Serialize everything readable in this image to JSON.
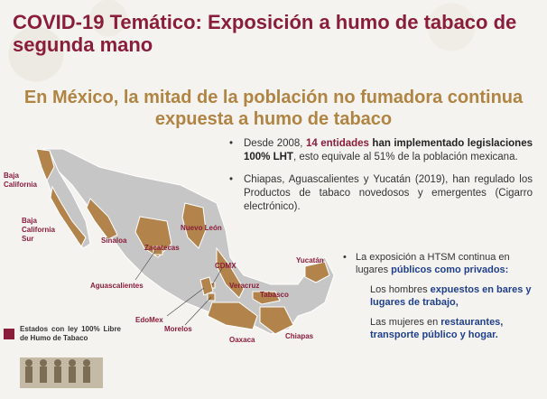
{
  "title": "COVID-19 Temático: Exposición a humo de tabaco de segunda mano",
  "headline": "En México, la mitad de la población no fumadora continua expuesta a humo de tabaco",
  "map_labels": {
    "baja_california": "Baja California",
    "baja_california_sur": "Baja California Sur",
    "sinaloa": "Sinaloa",
    "zacatecas": "Zacatecas",
    "nuevo_leon": "Nuevo León",
    "aguascalientes": "Aguascalientes",
    "cdmx": "CDMX",
    "veracruz": "Veracruz",
    "tabasco": "Tabasco",
    "yucatan": "Yucatán",
    "edomex": "EdoMex",
    "morelos": "Morelos",
    "oaxaca": "Oaxaca",
    "chiapas": "Chiapas"
  },
  "bullet1": {
    "pre": "Desde 2008, ",
    "count": "14 entidades",
    "mid": " han implementado legislaciones 100% LHT",
    "post": ", esto equivale al 51% de la población mexicana."
  },
  "bullet2": "Chiapas, Aguascalientes y Yucatán (2019), han regulado los Productos de tabaco novedosos y emergentes (Cigarro electrónico).",
  "sub": {
    "intro_pre": "La exposición a HTSM continua en lugares ",
    "intro_hl": "públicos como privados:",
    "men_pre": "Los hombres ",
    "men_hl": "expuestos en bares y lugares de trabajo,",
    "women_pre": "Las mujeres en ",
    "women_hl": "restaurantes, transporte público y hogar."
  },
  "legend": "Estados con ley 100% Libre de Humo de Tabaco",
  "colors": {
    "accent_red": "#8a1d3a",
    "accent_gold": "#b08443",
    "highlight_blue": "#1f3f8c",
    "map_grey": "#c6c6c6",
    "map_highlight": "#b2834a"
  }
}
